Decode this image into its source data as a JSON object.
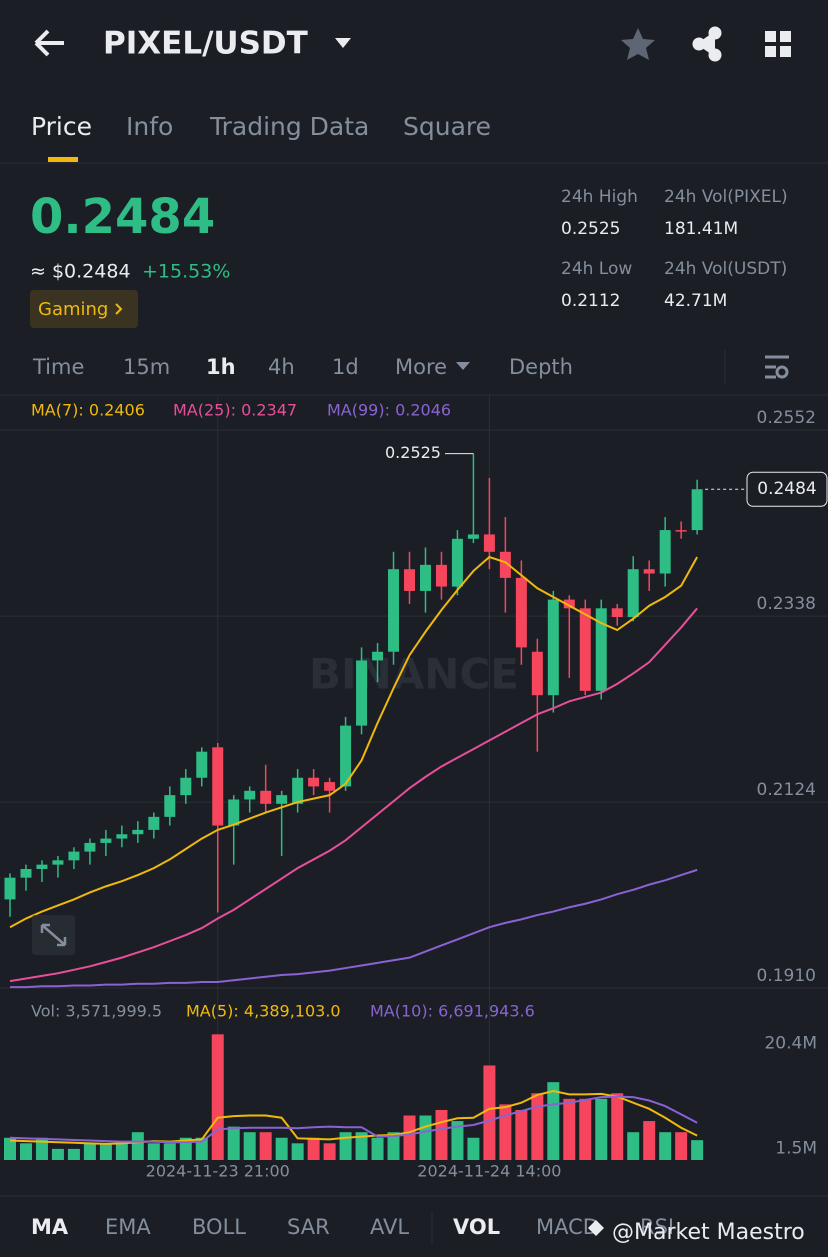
{
  "header": {
    "title": "PIXEL/USDT"
  },
  "tabs": [
    "Price",
    "Info",
    "Trading Data",
    "Square"
  ],
  "price": {
    "last": "0.2484",
    "fiat": "≈ $0.2484",
    "change": "+15.53%",
    "tag": "Gaming"
  },
  "stats": [
    {
      "label": "24h High",
      "value": "0.2525"
    },
    {
      "label": "24h Vol(PIXEL)",
      "value": "181.41M"
    },
    {
      "label": "24h Low",
      "value": "0.2112"
    },
    {
      "label": "24h Vol(USDT)",
      "value": "42.71M"
    }
  ],
  "intervals": [
    "Time",
    "15m",
    "1h",
    "4h",
    "1d",
    "More",
    "Depth"
  ],
  "watermark": "BINANCE",
  "chart_data": [
    {
      "type": "candlestick",
      "up_color": "#2ebd85",
      "down_color": "#f6465d",
      "categories": [
        null,
        null,
        null,
        null,
        null,
        null,
        null,
        null,
        null,
        null,
        null,
        null,
        null,
        "2024-11-23 21:00",
        null,
        null,
        null,
        null,
        null,
        null,
        null,
        null,
        null,
        null,
        null,
        null,
        null,
        null,
        null,
        null,
        "2024-11-24 14:00",
        null,
        null,
        null,
        null,
        null,
        null,
        null,
        null,
        null,
        null,
        null,
        null,
        null
      ],
      "open": [
        0.2012,
        0.2037,
        0.2047,
        0.2052,
        0.2057,
        0.2067,
        0.2077,
        0.2082,
        0.2087,
        0.2092,
        0.2107,
        0.2132,
        0.2152,
        0.2187,
        0.2097,
        0.2127,
        0.2137,
        0.2122,
        0.2122,
        0.2152,
        0.2147,
        0.2142,
        0.2212,
        0.2287,
        0.2297,
        0.2392,
        0.2367,
        0.2397,
        0.2372,
        0.2427,
        0.2432,
        0.2412,
        0.2382,
        0.2297,
        0.2247,
        0.2357,
        0.2347,
        0.2252,
        0.2347,
        0.2337,
        0.2392,
        0.2387,
        0.2437,
        0.2437
      ],
      "high": [
        0.2042,
        0.2052,
        0.2057,
        0.2062,
        0.2072,
        0.2082,
        0.2092,
        0.2097,
        0.2102,
        0.2112,
        0.2142,
        0.2162,
        0.2187,
        0.2192,
        0.2132,
        0.2142,
        0.2167,
        0.2137,
        0.2162,
        0.2162,
        0.2152,
        0.2222,
        0.2302,
        0.2307,
        0.2412,
        0.2412,
        0.2417,
        0.2412,
        0.2437,
        0.2525,
        0.2497,
        0.2452,
        0.2402,
        0.2312,
        0.2367,
        0.2362,
        0.2357,
        0.2357,
        0.2352,
        0.2407,
        0.2402,
        0.2452,
        0.2447,
        0.2495
      ],
      "low": [
        0.1992,
        0.2022,
        0.2032,
        0.2037,
        0.2047,
        0.2052,
        0.2062,
        0.2072,
        0.2077,
        0.2082,
        0.2097,
        0.2122,
        0.2142,
        0.1997,
        0.2052,
        0.2112,
        0.2112,
        0.2062,
        0.2112,
        0.2132,
        0.2112,
        0.2137,
        0.2202,
        0.2262,
        0.2282,
        0.2352,
        0.2342,
        0.2357,
        0.2362,
        0.2422,
        0.2392,
        0.2342,
        0.2282,
        0.2182,
        0.2227,
        0.2267,
        0.2247,
        0.2242,
        0.2327,
        0.2332,
        0.2367,
        0.2372,
        0.2427,
        0.2432
      ],
      "close": [
        0.2037,
        0.2047,
        0.2052,
        0.2057,
        0.2067,
        0.2077,
        0.2082,
        0.2087,
        0.2092,
        0.2107,
        0.2132,
        0.2152,
        0.2182,
        0.2097,
        0.2127,
        0.2137,
        0.2122,
        0.2132,
        0.2152,
        0.2142,
        0.2137,
        0.2212,
        0.2287,
        0.2297,
        0.2392,
        0.2367,
        0.2397,
        0.2372,
        0.2427,
        0.2432,
        0.2412,
        0.2382,
        0.2302,
        0.2247,
        0.2357,
        0.2347,
        0.2252,
        0.2347,
        0.2337,
        0.2392,
        0.2387,
        0.2437,
        0.2437,
        0.2484
      ],
      "series": [
        {
          "name": "MA(7): 0.2406",
          "color": "#f0b90b",
          "values": [
            0.198,
            0.199,
            0.1998,
            0.2005,
            0.2012,
            0.202,
            0.2027,
            0.2033,
            0.204,
            0.2048,
            0.2058,
            0.207,
            0.2082,
            0.2092,
            0.2098,
            0.2105,
            0.2112,
            0.2118,
            0.2124,
            0.2128,
            0.2132,
            0.2145,
            0.2172,
            0.2215,
            0.2255,
            0.2293,
            0.232,
            0.2345,
            0.2368,
            0.239,
            0.2406,
            0.24,
            0.2385,
            0.237,
            0.236,
            0.235,
            0.234,
            0.233,
            0.2322,
            0.2335,
            0.235,
            0.236,
            0.2373,
            0.2406
          ]
        },
        {
          "name": "MA(25): 0.2347",
          "color": "#e84f9b",
          "values": [
            0.1918,
            0.1921,
            0.1924,
            0.1927,
            0.1931,
            0.1935,
            0.194,
            0.1945,
            0.1951,
            0.1957,
            0.1964,
            0.1971,
            0.1979,
            0.199,
            0.2,
            0.2012,
            0.2024,
            0.2036,
            0.2048,
            0.2058,
            0.2068,
            0.208,
            0.2095,
            0.211,
            0.2125,
            0.214,
            0.2153,
            0.2165,
            0.2175,
            0.2185,
            0.2195,
            0.2205,
            0.2215,
            0.2225,
            0.2232,
            0.224,
            0.2245,
            0.225,
            0.226,
            0.2272,
            0.2285,
            0.2305,
            0.2325,
            0.2347
          ]
        },
        {
          "name": "MA(99): 0.2046",
          "color": "#8a63d2",
          "values": [
            0.1911,
            0.1911,
            0.1912,
            0.1912,
            0.1913,
            0.1913,
            0.1914,
            0.1914,
            0.1915,
            0.1915,
            0.1916,
            0.1916,
            0.1917,
            0.1917,
            0.1919,
            0.1921,
            0.1923,
            0.1925,
            0.1926,
            0.1928,
            0.193,
            0.1933,
            0.1936,
            0.1939,
            0.1942,
            0.1945,
            0.1952,
            0.1959,
            0.1966,
            0.1973,
            0.198,
            0.1985,
            0.1989,
            0.1994,
            0.1998,
            0.2003,
            0.2007,
            0.2012,
            0.2018,
            0.2023,
            0.2029,
            0.2034,
            0.204,
            0.2046
          ]
        }
      ],
      "ylim": [
        0.1902,
        0.2589
      ],
      "yticks": [
        0.2552,
        0.2338,
        0.2124,
        {
          "value": 0.191,
          "label": "0.1910"
        }
      ],
      "grid": true
    },
    {
      "type": "bar",
      "vol_label": "Vol: 3,571,999.5",
      "values": [
        4,
        3,
        4,
        2,
        2,
        3,
        3,
        3,
        5,
        3,
        3,
        4,
        4,
        22.6,
        6,
        5,
        5,
        4,
        3,
        4,
        3,
        5,
        5,
        4,
        5,
        8,
        8,
        9,
        7,
        4,
        17,
        10,
        9,
        12,
        14,
        11,
        11,
        11,
        12,
        5,
        7,
        5,
        5,
        3.5719995
      ],
      "series": [
        {
          "name": "MA(5): 4,389,103.0",
          "color": "#f0b90b",
          "values": [
            3.5,
            3.4,
            3.3,
            3.2,
            3.1,
            3.0,
            2.9,
            3.0,
            3.2,
            3.4,
            3.3,
            3.5,
            3.7,
            7.6,
            7.9,
            8.0,
            8.0,
            7.6,
            3.9,
            3.8,
            3.7,
            4.0,
            4.2,
            4.4,
            4.5,
            5.0,
            6.0,
            6.8,
            7.5,
            7.6,
            9.2,
            9.5,
            10.3,
            11.7,
            12.4,
            11.8,
            11.8,
            11.9,
            11.4,
            10.3,
            9.2,
            7.6,
            5.8,
            4.389103
          ]
        },
        {
          "name": "MA(10): 6,691,943.6",
          "color": "#8a63d2",
          "values": [
            4.0,
            3.9,
            3.8,
            3.7,
            3.6,
            3.5,
            3.4,
            3.3,
            3.3,
            3.3,
            3.2,
            3.2,
            3.3,
            5.5,
            5.7,
            5.8,
            5.8,
            5.8,
            5.7,
            5.9,
            6.0,
            5.9,
            5.9,
            4.2,
            4.3,
            4.6,
            5.1,
            5.6,
            6.0,
            6.3,
            7.1,
            8.0,
            8.8,
            9.6,
            10.0,
            10.3,
            10.8,
            11.3,
            11.4,
            11.3,
            10.7,
            9.7,
            8.2,
            6.6919436
          ]
        }
      ],
      "ylim": [
        0,
        22.3
      ],
      "yticks": [
        {
          "value": 20.4,
          "label": "20.4M"
        },
        {
          "value": 1.5,
          "label": "1.5M"
        }
      ]
    }
  ],
  "indicators": [
    "MA",
    "EMA",
    "BOLL",
    "SAR",
    "AVL",
    "VOL",
    "MACD",
    "RSI"
  ],
  "credit": "@Market Maestro"
}
